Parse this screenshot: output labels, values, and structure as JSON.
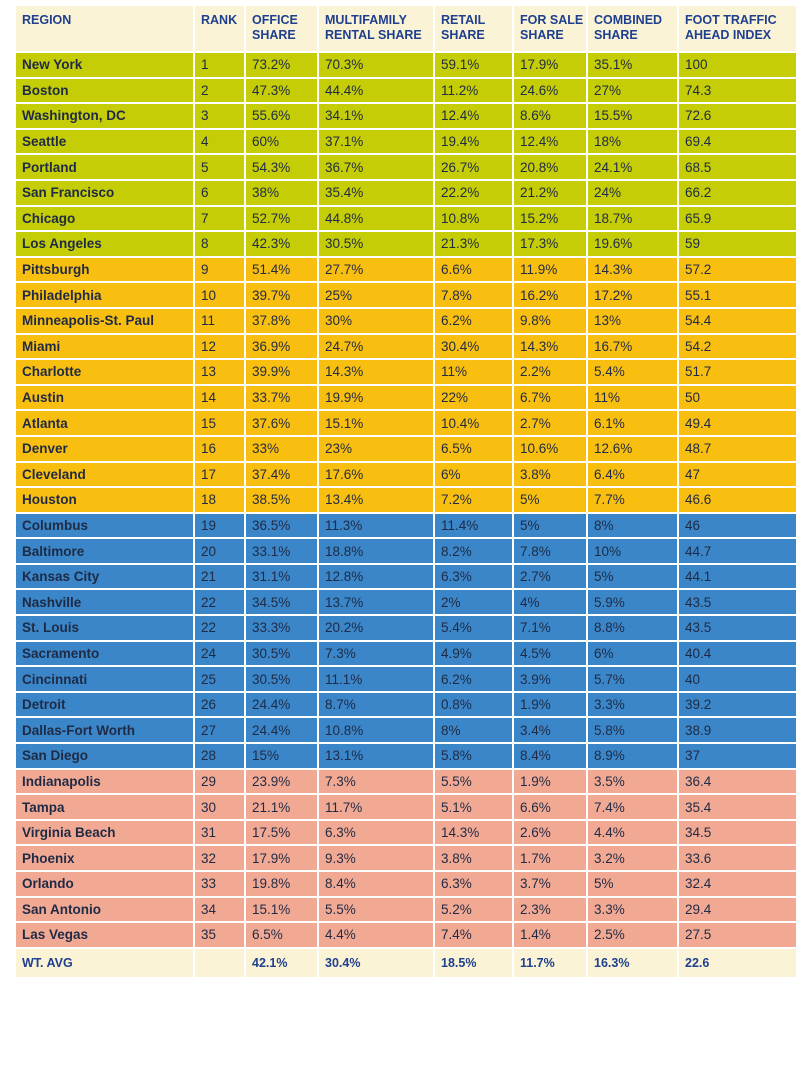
{
  "colors": {
    "header_bg": "#faf3d6",
    "header_text": "#1f3f8f",
    "tier_1": "#c5cd06",
    "tier_2": "#f9bf10",
    "tier_3": "#3a86c9",
    "tier_4": "#f2a994",
    "cell_text": "#1f2a44"
  },
  "table": {
    "headers": {
      "region": "REGION",
      "rank": "RANK",
      "office": "OFFICE SHARE",
      "multifamily": "MULTIFAMILY RENTAL SHARE",
      "retail": "RETAIL SHARE",
      "for_sale": "FOR SALE SHARE",
      "combined": "COMBINED SHARE",
      "foot_traffic": "FOOT TRAFFIC AHEAD INDEX"
    },
    "rows": [
      {
        "tier": 1,
        "region": "New York",
        "rank": "1",
        "office": "73.2%",
        "multifamily": "70.3%",
        "retail": "59.1%",
        "for_sale": "17.9%",
        "combined": "35.1%",
        "foot_traffic": "100"
      },
      {
        "tier": 1,
        "region": "Boston",
        "rank": "2",
        "office": "47.3%",
        "multifamily": "44.4%",
        "retail": "11.2%",
        "for_sale": "24.6%",
        "combined": "27%",
        "foot_traffic": "74.3"
      },
      {
        "tier": 1,
        "region": "Washington, DC",
        "rank": "3",
        "office": "55.6%",
        "multifamily": "34.1%",
        "retail": "12.4%",
        "for_sale": "8.6%",
        "combined": "15.5%",
        "foot_traffic": "72.6"
      },
      {
        "tier": 1,
        "region": "Seattle",
        "rank": "4",
        "office": "60%",
        "multifamily": "37.1%",
        "retail": "19.4%",
        "for_sale": "12.4%",
        "combined": "18%",
        "foot_traffic": "69.4"
      },
      {
        "tier": 1,
        "region": "Portland",
        "rank": "5",
        "office": "54.3%",
        "multifamily": "36.7%",
        "retail": "26.7%",
        "for_sale": "20.8%",
        "combined": "24.1%",
        "foot_traffic": "68.5"
      },
      {
        "tier": 1,
        "region": "San Francisco",
        "rank": "6",
        "office": "38%",
        "multifamily": "35.4%",
        "retail": "22.2%",
        "for_sale": "21.2%",
        "combined": "24%",
        "foot_traffic": "66.2"
      },
      {
        "tier": 1,
        "region": "Chicago",
        "rank": "7",
        "office": "52.7%",
        "multifamily": "44.8%",
        "retail": "10.8%",
        "for_sale": "15.2%",
        "combined": "18.7%",
        "foot_traffic": "65.9"
      },
      {
        "tier": 1,
        "region": "Los Angeles",
        "rank": "8",
        "office": "42.3%",
        "multifamily": "30.5%",
        "retail": "21.3%",
        "for_sale": "17.3%",
        "combined": "19.6%",
        "foot_traffic": "59"
      },
      {
        "tier": 2,
        "region": "Pittsburgh",
        "rank": "9",
        "office": "51.4%",
        "multifamily": "27.7%",
        "retail": "6.6%",
        "for_sale": "11.9%",
        "combined": "14.3%",
        "foot_traffic": "57.2"
      },
      {
        "tier": 2,
        "region": "Philadelphia",
        "rank": "10",
        "office": "39.7%",
        "multifamily": "25%",
        "retail": "7.8%",
        "for_sale": "16.2%",
        "combined": "17.2%",
        "foot_traffic": "55.1"
      },
      {
        "tier": 2,
        "region": "Minneapolis-St. Paul",
        "rank": "11",
        "office": "37.8%",
        "multifamily": "30%",
        "retail": "6.2%",
        "for_sale": "9.8%",
        "combined": "13%",
        "foot_traffic": "54.4"
      },
      {
        "tier": 2,
        "region": "Miami",
        "rank": "12",
        "office": "36.9%",
        "multifamily": "24.7%",
        "retail": "30.4%",
        "for_sale": "14.3%",
        "combined": "16.7%",
        "foot_traffic": "54.2"
      },
      {
        "tier": 2,
        "region": "Charlotte",
        "rank": "13",
        "office": "39.9%",
        "multifamily": "14.3%",
        "retail": "11%",
        "for_sale": "2.2%",
        "combined": "5.4%",
        "foot_traffic": "51.7"
      },
      {
        "tier": 2,
        "region": "Austin",
        "rank": "14",
        "office": "33.7%",
        "multifamily": "19.9%",
        "retail": "22%",
        "for_sale": "6.7%",
        "combined": "11%",
        "foot_traffic": "50"
      },
      {
        "tier": 2,
        "region": "Atlanta",
        "rank": "15",
        "office": "37.6%",
        "multifamily": "15.1%",
        "retail": "10.4%",
        "for_sale": "2.7%",
        "combined": "6.1%",
        "foot_traffic": "49.4"
      },
      {
        "tier": 2,
        "region": "Denver",
        "rank": "16",
        "office": "33%",
        "multifamily": "23%",
        "retail": "6.5%",
        "for_sale": "10.6%",
        "combined": "12.6%",
        "foot_traffic": "48.7"
      },
      {
        "tier": 2,
        "region": "Cleveland",
        "rank": "17",
        "office": "37.4%",
        "multifamily": "17.6%",
        "retail": "6%",
        "for_sale": "3.8%",
        "combined": "6.4%",
        "foot_traffic": "47"
      },
      {
        "tier": 2,
        "region": "Houston",
        "rank": "18",
        "office": "38.5%",
        "multifamily": "13.4%",
        "retail": "7.2%",
        "for_sale": "5%",
        "combined": "7.7%",
        "foot_traffic": "46.6"
      },
      {
        "tier": 3,
        "region": "Columbus",
        "rank": "19",
        "office": "36.5%",
        "multifamily": "11.3%",
        "retail": "11.4%",
        "for_sale": "5%",
        "combined": "8%",
        "foot_traffic": "46"
      },
      {
        "tier": 3,
        "region": "Baltimore",
        "rank": "20",
        "office": "33.1%",
        "multifamily": "18.8%",
        "retail": "8.2%",
        "for_sale": "7.8%",
        "combined": "10%",
        "foot_traffic": "44.7"
      },
      {
        "tier": 3,
        "region": "Kansas City",
        "rank": "21",
        "office": "31.1%",
        "multifamily": "12.8%",
        "retail": "6.3%",
        "for_sale": "2.7%",
        "combined": "5%",
        "foot_traffic": "44.1"
      },
      {
        "tier": 3,
        "region": "Nashville",
        "rank": "22",
        "office": "34.5%",
        "multifamily": "13.7%",
        "retail": "2%",
        "for_sale": "4%",
        "combined": "5.9%",
        "foot_traffic": "43.5"
      },
      {
        "tier": 3,
        "region": "St. Louis",
        "rank": "22",
        "office": "33.3%",
        "multifamily": "20.2%",
        "retail": "5.4%",
        "for_sale": "7.1%",
        "combined": "8.8%",
        "foot_traffic": "43.5"
      },
      {
        "tier": 3,
        "region": "Sacramento",
        "rank": "24",
        "office": "30.5%",
        "multifamily": "7.3%",
        "retail": "4.9%",
        "for_sale": "4.5%",
        "combined": "6%",
        "foot_traffic": "40.4"
      },
      {
        "tier": 3,
        "region": "Cincinnati",
        "rank": "25",
        "office": "30.5%",
        "multifamily": "11.1%",
        "retail": "6.2%",
        "for_sale": "3.9%",
        "combined": "5.7%",
        "foot_traffic": "40"
      },
      {
        "tier": 3,
        "region": "Detroit",
        "rank": "26",
        "office": "24.4%",
        "multifamily": "8.7%",
        "retail": "0.8%",
        "for_sale": "1.9%",
        "combined": "3.3%",
        "foot_traffic": "39.2"
      },
      {
        "tier": 3,
        "region": "Dallas-Fort Worth",
        "rank": "27",
        "office": "24.4%",
        "multifamily": "10.8%",
        "retail": "8%",
        "for_sale": "3.4%",
        "combined": "5.8%",
        "foot_traffic": "38.9"
      },
      {
        "tier": 3,
        "region": "San Diego",
        "rank": "28",
        "office": "15%",
        "multifamily": "13.1%",
        "retail": "5.8%",
        "for_sale": "8.4%",
        "combined": "8.9%",
        "foot_traffic": "37"
      },
      {
        "tier": 4,
        "region": "Indianapolis",
        "rank": "29",
        "office": "23.9%",
        "multifamily": "7.3%",
        "retail": "5.5%",
        "for_sale": "1.9%",
        "combined": "3.5%",
        "foot_traffic": "36.4"
      },
      {
        "tier": 4,
        "region": "Tampa",
        "rank": "30",
        "office": "21.1%",
        "multifamily": "11.7%",
        "retail": "5.1%",
        "for_sale": "6.6%",
        "combined": "7.4%",
        "foot_traffic": "35.4"
      },
      {
        "tier": 4,
        "region": "Virginia Beach",
        "rank": "31",
        "office": "17.5%",
        "multifamily": "6.3%",
        "retail": "14.3%",
        "for_sale": "2.6%",
        "combined": "4.4%",
        "foot_traffic": "34.5"
      },
      {
        "tier": 4,
        "region": "Phoenix",
        "rank": "32",
        "office": "17.9%",
        "multifamily": "9.3%",
        "retail": "3.8%",
        "for_sale": "1.7%",
        "combined": "3.2%",
        "foot_traffic": "33.6"
      },
      {
        "tier": 4,
        "region": "Orlando",
        "rank": "33",
        "office": "19.8%",
        "multifamily": "8.4%",
        "retail": "6.3%",
        "for_sale": "3.7%",
        "combined": "5%",
        "foot_traffic": "32.4"
      },
      {
        "tier": 4,
        "region": "San Antonio",
        "rank": "34",
        "office": "15.1%",
        "multifamily": "5.5%",
        "retail": "5.2%",
        "for_sale": "2.3%",
        "combined": "3.3%",
        "foot_traffic": "29.4"
      },
      {
        "tier": 4,
        "region": "Las Vegas",
        "rank": "35",
        "office": "6.5%",
        "multifamily": "4.4%",
        "retail": "7.4%",
        "for_sale": "1.4%",
        "combined": "2.5%",
        "foot_traffic": "27.5"
      }
    ],
    "footer": {
      "region": "WT. AVG",
      "rank": "",
      "office": "42.1%",
      "multifamily": "30.4%",
      "retail": "18.5%",
      "for_sale": "11.7%",
      "combined": "16.3%",
      "foot_traffic": "22.6"
    }
  }
}
